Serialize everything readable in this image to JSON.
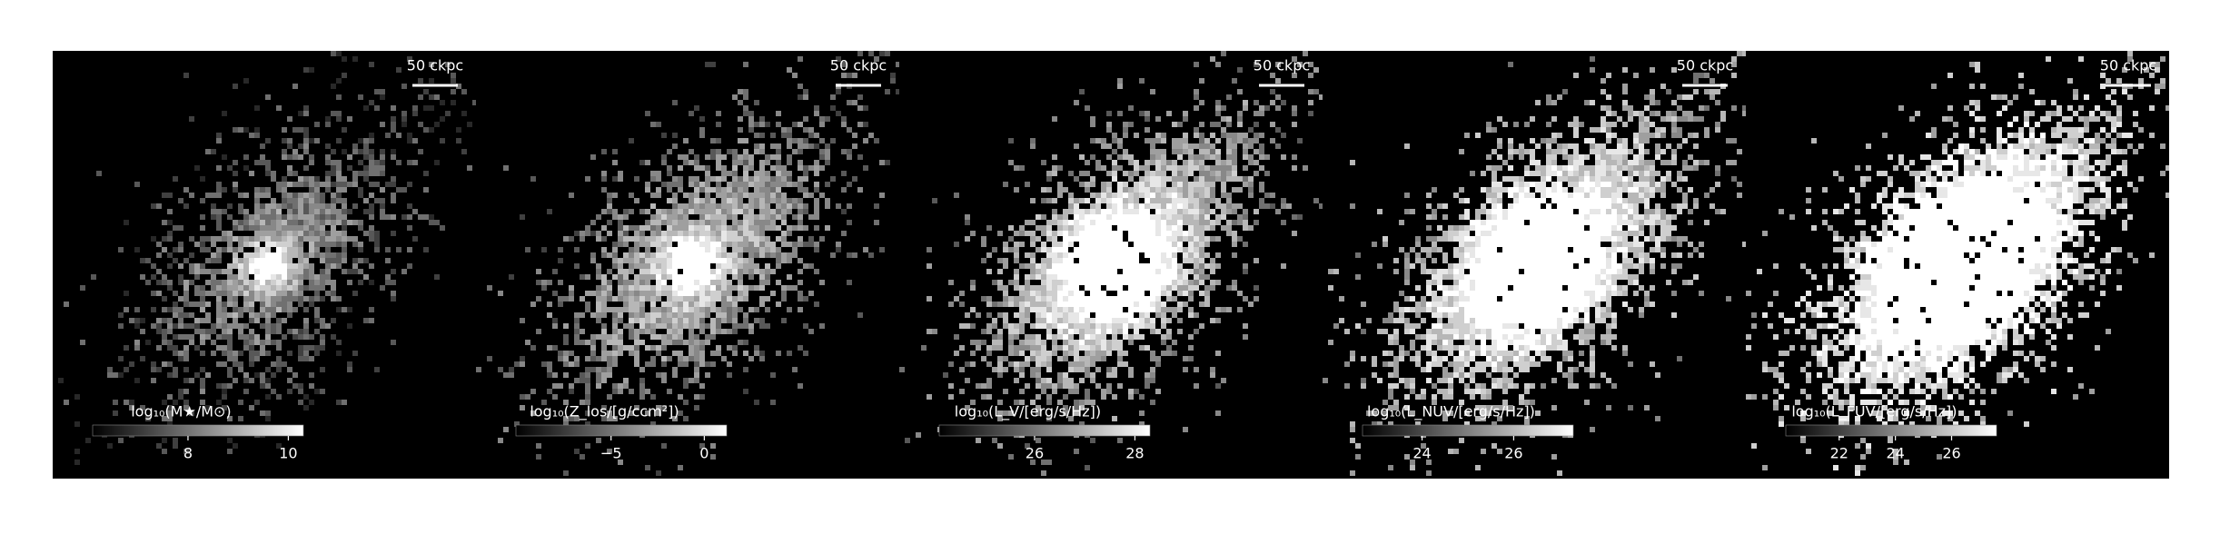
{
  "panels": [
    {
      "scale_bar": "50 ckpc",
      "colorbar": {
        "label": "log₁₀(M★/M⊙)",
        "lim": [
          6.1,
          10.3
        ],
        "ticks": [
          8,
          10
        ]
      }
    },
    {
      "scale_bar": "50 ckpc",
      "colorbar": {
        "label": "log₁₀(Z_los/[g/ccm²])",
        "lim": [
          -10.1,
          1.2
        ],
        "ticks": [
          {
            "value": -5,
            "label": "−5"
          },
          0
        ]
      }
    },
    {
      "scale_bar": "50 ckpc",
      "colorbar": {
        "label": "log₁₀(L_V/[erg/s/Hz])",
        "lim": [
          24.1,
          28.3
        ],
        "ticks": [
          26,
          28
        ]
      }
    },
    {
      "scale_bar": "50 ckpc",
      "colorbar": {
        "label": "log₁₀(L_NUV/[erg/s/Hz])",
        "lim": [
          22.7,
          27.3
        ],
        "ticks": [
          24,
          26
        ]
      }
    },
    {
      "scale_bar": "50 ckpc",
      "colorbar": {
        "label": "log₁₀(L_FUV/[erg/s/Hz])",
        "lim": [
          20.1,
          27.6
        ],
        "ticks": [
          22,
          24,
          26
        ]
      }
    }
  ]
}
